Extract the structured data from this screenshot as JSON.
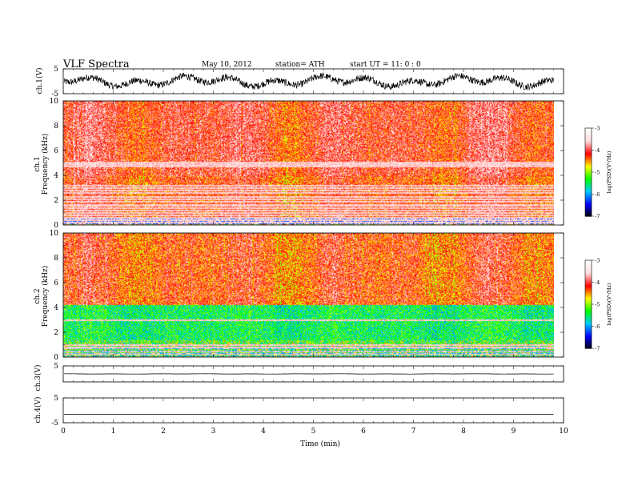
{
  "header": {
    "title": "VLF  Spectra",
    "date": "May 10, 2012",
    "station": "station= ATH",
    "start": "start  UT  =    11: 0  : 0"
  },
  "chart_data": {
    "type": "spectrogram",
    "x_axis": {
      "label": "Time  (min)",
      "range": [
        0,
        10
      ],
      "ticks": [
        "0",
        "1",
        "2",
        "3",
        "4",
        "5",
        "6",
        "7",
        "8",
        "9",
        "10"
      ],
      "data_end": 9.8
    },
    "panels": [
      {
        "id": "ch1-waveform",
        "type": "line",
        "ylabel": "ch.1(V)",
        "ylim": [
          -5,
          5
        ],
        "yticks": [
          "5",
          "-5"
        ],
        "amplitude": 3.5
      },
      {
        "id": "ch1-spectrogram",
        "type": "heatmap",
        "ylabel": [
          "ch.1",
          "Frequency  (kHz)"
        ],
        "ylim": [
          0,
          10
        ],
        "yticks": [
          "0",
          "2",
          "4",
          "6",
          "8",
          "10"
        ],
        "upper_activity": 0.72,
        "lines_khz": [
          4.75,
          4.9,
          5.05,
          3.0,
          3.2,
          2.8,
          2.6,
          2.3,
          2.1,
          1.9,
          1.6,
          1.4,
          1.2,
          1.0,
          0.8,
          0.6,
          0.4,
          0.2
        ]
      },
      {
        "id": "ch2-spectrogram",
        "type": "heatmap",
        "ylabel": [
          "ch.2",
          "Frequency  (kHz)"
        ],
        "ylim": [
          0,
          10
        ],
        "yticks": [
          "0",
          "2",
          "4",
          "6",
          "8",
          "10"
        ],
        "upper_activity": 0.6,
        "lines_khz": [
          3.0,
          1.0,
          0.8,
          0.5,
          0.3
        ]
      },
      {
        "id": "ch3-waveform",
        "type": "line",
        "ylabel": "ch.3(V)",
        "ylim": [
          -5,
          5
        ],
        "yticks": [
          "5"
        ],
        "amplitude": 0.15
      },
      {
        "id": "ch4-waveform",
        "type": "line",
        "ylabel": "ch.4(V)",
        "ylim": [
          -5,
          5
        ],
        "yticks": [
          "5",
          "-5"
        ],
        "amplitude": 0.0
      }
    ],
    "colorbar": {
      "label": "log(PSD)(V²/Hz)",
      "ticks": [
        "-3",
        "-4",
        "-5",
        "-6",
        "-7"
      ],
      "range": [
        -7,
        -3
      ],
      "colors": [
        "#000000",
        "#0000ff",
        "#00c8ff",
        "#00ff00",
        "#ffff00",
        "#ff0000",
        "#ffdddd",
        "#ffffff"
      ]
    }
  }
}
